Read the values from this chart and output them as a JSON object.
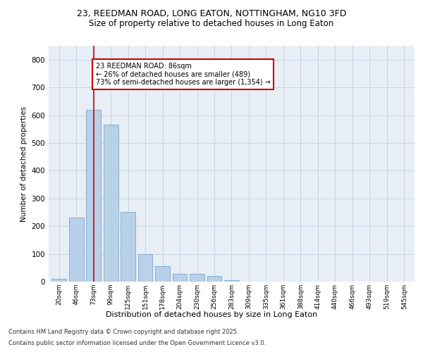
{
  "title_line1": "23, REEDMAN ROAD, LONG EATON, NOTTINGHAM, NG10 3FD",
  "title_line2": "Size of property relative to detached houses in Long Eaton",
  "xlabel": "Distribution of detached houses by size in Long Eaton",
  "ylabel": "Number of detached properties",
  "categories": [
    "20sqm",
    "46sqm",
    "73sqm",
    "99sqm",
    "125sqm",
    "151sqm",
    "178sqm",
    "204sqm",
    "230sqm",
    "256sqm",
    "283sqm",
    "309sqm",
    "335sqm",
    "361sqm",
    "388sqm",
    "414sqm",
    "440sqm",
    "466sqm",
    "493sqm",
    "519sqm",
    "545sqm"
  ],
  "values": [
    10,
    232,
    620,
    565,
    252,
    98,
    55,
    27,
    27,
    20,
    5,
    0,
    0,
    0,
    0,
    0,
    0,
    0,
    0,
    0,
    0
  ],
  "bar_color": "#b8d0e8",
  "bar_edge_color": "#7aaaca",
  "grid_color": "#c8d4e4",
  "background_color": "#e8eef6",
  "vline_x_index": 2,
  "vline_color": "#cc0000",
  "annotation_text": "23 REEDMAN ROAD: 86sqm\n← 26% of detached houses are smaller (489)\n73% of semi-detached houses are larger (1,354) →",
  "annotation_box_edgecolor": "#cc0000",
  "footer_line1": "Contains HM Land Registry data © Crown copyright and database right 2025.",
  "footer_line2": "Contains public sector information licensed under the Open Government Licence v3.0.",
  "ylim": [
    0,
    850
  ],
  "yticks": [
    0,
    100,
    200,
    300,
    400,
    500,
    600,
    700,
    800
  ]
}
